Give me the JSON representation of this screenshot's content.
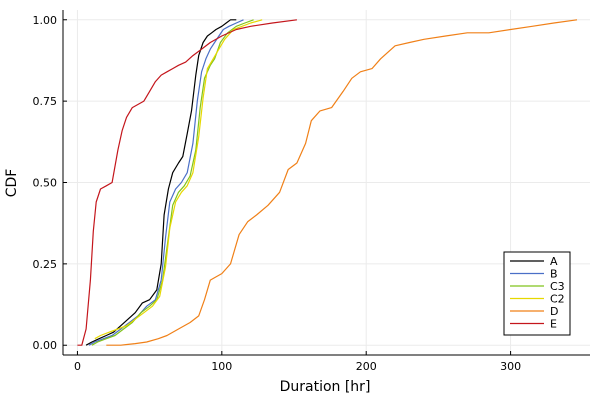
{
  "chart_data": {
    "type": "line",
    "xlabel": "Duration [hr]",
    "ylabel": "CDF",
    "xlim": [
      -10,
      355
    ],
    "ylim": [
      -0.03,
      1.03
    ],
    "x_ticks": [
      0,
      100,
      200,
      300
    ],
    "x_tick_labels": [
      "0",
      "100",
      "200",
      "300"
    ],
    "y_ticks": [
      0,
      0.25,
      0.5,
      0.75,
      1
    ],
    "y_tick_labels": [
      "0.00",
      "0.25",
      "0.50",
      "0.75",
      "1.00"
    ],
    "grid": true,
    "legend_position": "bottom-right",
    "series": [
      {
        "name": "A",
        "color": "#000000",
        "x": [
          6,
          10,
          15,
          20,
          25,
          30,
          35,
          40,
          45,
          50,
          55,
          58,
          60,
          63,
          66,
          70,
          73,
          76,
          79,
          82,
          84,
          87,
          90,
          93,
          96,
          100,
          103,
          106,
          110
        ],
        "y": [
          0,
          0.01,
          0.02,
          0.03,
          0.04,
          0.06,
          0.08,
          0.1,
          0.13,
          0.14,
          0.17,
          0.25,
          0.4,
          0.48,
          0.53,
          0.56,
          0.58,
          0.65,
          0.72,
          0.83,
          0.89,
          0.93,
          0.95,
          0.96,
          0.97,
          0.98,
          0.99,
          1.0,
          1.0
        ]
      },
      {
        "name": "B",
        "color": "#4a6fc7",
        "x": [
          8,
          12,
          18,
          24,
          30,
          36,
          42,
          48,
          54,
          58,
          61,
          64,
          68,
          72,
          76,
          80,
          83,
          86,
          89,
          92,
          95,
          98,
          101,
          105,
          110,
          115
        ],
        "y": [
          0,
          0.01,
          0.02,
          0.03,
          0.05,
          0.07,
          0.09,
          0.12,
          0.14,
          0.2,
          0.33,
          0.44,
          0.48,
          0.5,
          0.53,
          0.62,
          0.75,
          0.84,
          0.88,
          0.91,
          0.93,
          0.95,
          0.97,
          0.98,
          0.99,
          1.0
        ]
      },
      {
        "name": "C3",
        "color": "#80c41c",
        "x": [
          10,
          14,
          20,
          26,
          32,
          38,
          44,
          50,
          55,
          59,
          62,
          66,
          70,
          74,
          78,
          82,
          85,
          88,
          92,
          95,
          99,
          104,
          110,
          116,
          122
        ],
        "y": [
          0,
          0.01,
          0.02,
          0.03,
          0.05,
          0.07,
          0.1,
          0.12,
          0.14,
          0.2,
          0.3,
          0.43,
          0.47,
          0.49,
          0.52,
          0.6,
          0.73,
          0.82,
          0.86,
          0.88,
          0.93,
          0.96,
          0.98,
          0.99,
          1.0
        ]
      },
      {
        "name": "C2",
        "color": "#e6d800",
        "x": [
          12,
          16,
          22,
          28,
          34,
          40,
          46,
          52,
          57,
          61,
          64,
          68,
          72,
          76,
          80,
          84,
          87,
          90,
          94,
          98,
          102,
          108,
          114,
          120,
          128
        ],
        "y": [
          0.02,
          0.03,
          0.04,
          0.05,
          0.06,
          0.08,
          0.1,
          0.12,
          0.15,
          0.24,
          0.36,
          0.44,
          0.47,
          0.49,
          0.53,
          0.64,
          0.76,
          0.85,
          0.88,
          0.91,
          0.94,
          0.97,
          0.98,
          0.99,
          1.0
        ]
      },
      {
        "name": "D",
        "color": "#f08018",
        "x": [
          20,
          30,
          40,
          48,
          56,
          62,
          70,
          78,
          84,
          88,
          92,
          96,
          100,
          106,
          112,
          118,
          124,
          132,
          140,
          146,
          152,
          158,
          162,
          168,
          176,
          184,
          190,
          196,
          204,
          210,
          220,
          230,
          240,
          255,
          270,
          285,
          300,
          315,
          330,
          346
        ],
        "y": [
          0.0,
          0.0,
          0.005,
          0.01,
          0.02,
          0.03,
          0.05,
          0.07,
          0.09,
          0.14,
          0.2,
          0.21,
          0.22,
          0.25,
          0.34,
          0.38,
          0.4,
          0.43,
          0.47,
          0.54,
          0.56,
          0.62,
          0.69,
          0.72,
          0.73,
          0.78,
          0.82,
          0.84,
          0.85,
          0.88,
          0.92,
          0.93,
          0.94,
          0.95,
          0.96,
          0.96,
          0.97,
          0.98,
          0.99,
          1.0
        ]
      },
      {
        "name": "E",
        "color": "#c4161c",
        "x": [
          0,
          3,
          6,
          9,
          11,
          13,
          16,
          20,
          24,
          28,
          31,
          34,
          38,
          42,
          46,
          50,
          54,
          58,
          62,
          66,
          70,
          75,
          80,
          86,
          92,
          100,
          110,
          120,
          135,
          152
        ],
        "y": [
          0,
          0,
          0.05,
          0.2,
          0.35,
          0.44,
          0.48,
          0.49,
          0.5,
          0.6,
          0.66,
          0.7,
          0.73,
          0.74,
          0.75,
          0.78,
          0.81,
          0.83,
          0.84,
          0.85,
          0.86,
          0.87,
          0.89,
          0.91,
          0.93,
          0.95,
          0.97,
          0.98,
          0.99,
          1.0
        ]
      }
    ]
  }
}
